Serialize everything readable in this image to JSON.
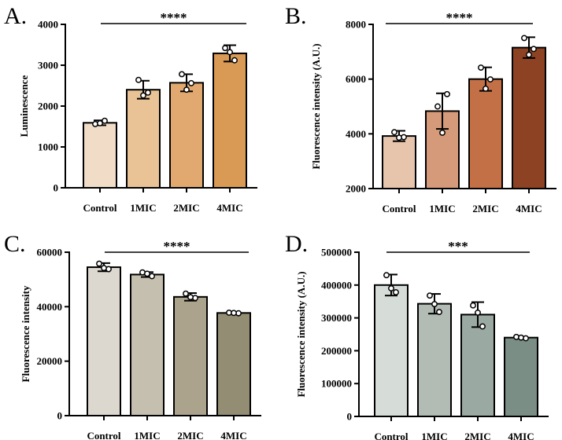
{
  "chart_data": [
    {
      "panel": "A.",
      "type": "bar",
      "ylabel": "Luminescence",
      "ylim": [
        0,
        4000
      ],
      "yticks": [
        0,
        1000,
        2000,
        3000,
        4000
      ],
      "categories": [
        "Control",
        "1MIC",
        "2MIC",
        "4MIC"
      ],
      "values": [
        1590,
        2400,
        2570,
        3290
      ],
      "errors": [
        60,
        220,
        210,
        200
      ],
      "points": [
        [
          1560,
          1640,
          1580
        ],
        [
          2640,
          2330,
          2260
        ],
        [
          2780,
          2560,
          2400
        ],
        [
          3420,
          3120,
          3320
        ]
      ],
      "colors": [
        "#f1dcc8",
        "#e9c396",
        "#e1a96f",
        "#d99a55"
      ],
      "significance": "****"
    },
    {
      "panel": "B.",
      "type": "bar",
      "ylabel": "Fluorescence intensity (A.U.)",
      "ylim": [
        2000,
        8000
      ],
      "yticks": [
        2000,
        4000,
        6000,
        8000
      ],
      "categories": [
        "Control",
        "1MIC",
        "2MIC",
        "4MIC"
      ],
      "values": [
        3920,
        4830,
        6000,
        7150
      ],
      "errors": [
        190,
        650,
        430,
        380
      ],
      "points": [
        [
          4060,
          3880,
          3860
        ],
        [
          5000,
          5450,
          4040
        ],
        [
          6420,
          5990,
          5650
        ],
        [
          7500,
          7100,
          6890
        ]
      ],
      "colors": [
        "#e7c5ac",
        "#d59a79",
        "#c47047",
        "#8d4323"
      ],
      "significance": "****"
    },
    {
      "panel": "C.",
      "type": "bar",
      "ylabel": "Fluorescence intensity",
      "ylim": [
        0,
        60000
      ],
      "yticks": [
        0,
        20000,
        40000,
        60000
      ],
      "categories": [
        "Control",
        "1MIC",
        "2MIC",
        "4MIC"
      ],
      "values": [
        54500,
        51800,
        43600,
        37700
      ],
      "errors": [
        1500,
        900,
        1400,
        300
      ],
      "points": [
        [
          55800,
          53800,
          54200
        ],
        [
          52600,
          51200,
          52100
        ],
        [
          44800,
          43200,
          43500
        ],
        [
          37800,
          37600,
          37700
        ]
      ],
      "colors": [
        "#ddd8cf",
        "#c4bfae",
        "#aba38c",
        "#938d73"
      ],
      "significance": "****"
    },
    {
      "panel": "D.",
      "type": "bar",
      "ylabel": "Fluorescence intensity (A.U.)",
      "ylim": [
        0,
        500000
      ],
      "yticks": [
        0,
        100000,
        200000,
        300000,
        400000,
        500000
      ],
      "categories": [
        "Control",
        "1MIC",
        "2MIC",
        "4MIC"
      ],
      "values": [
        400000,
        343000,
        310000,
        240000
      ],
      "errors": [
        32000,
        30000,
        38000,
        3000
      ],
      "points": [
        [
          430000,
          378000,
          390000
        ],
        [
          368000,
          318000,
          342000
        ],
        [
          338000,
          274000,
          316000
        ],
        [
          242000,
          238000,
          240000
        ]
      ],
      "colors": [
        "#d6dcd8",
        "#b2bcb5",
        "#9aa9a1",
        "#7b8e86"
      ],
      "significance": "***"
    }
  ]
}
